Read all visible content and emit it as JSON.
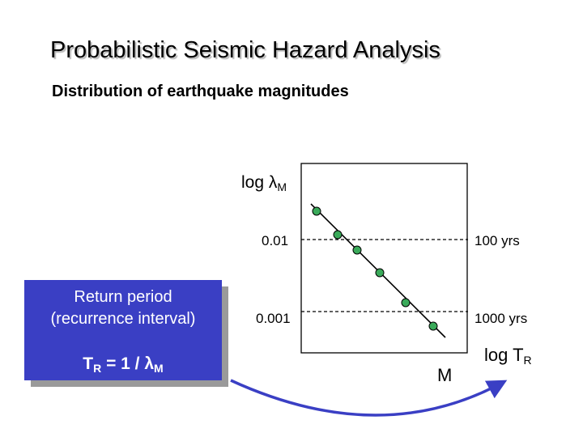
{
  "header": {
    "title": "Probabilistic Seismic Hazard Analysis",
    "subtitle": "Distribution of earthquake magnitudes"
  },
  "callout": {
    "line1": "Return period",
    "line2": "(recurrence interval)",
    "formula_T": "T",
    "formula_T_sub": "R",
    "formula_mid": " = 1 / ",
    "formula_lambda": "λ",
    "formula_lambda_sub": "M",
    "fill_color": "#3a3fc4"
  },
  "plot": {
    "y_axis_label_prefix": "log ",
    "y_axis_label_lambda": "λ",
    "y_axis_label_sub": "M",
    "x_axis_label": "M",
    "rate_levels": [
      {
        "rate_label": "0.01",
        "period_label": "100 yrs"
      },
      {
        "rate_label": "0.001",
        "period_label": "1000 yrs"
      }
    ],
    "right_axis_label_prefix": "log T",
    "right_axis_label_sub": "R",
    "point_color": "#3aaa5a",
    "arrow_color": "#3a3fc4"
  }
}
